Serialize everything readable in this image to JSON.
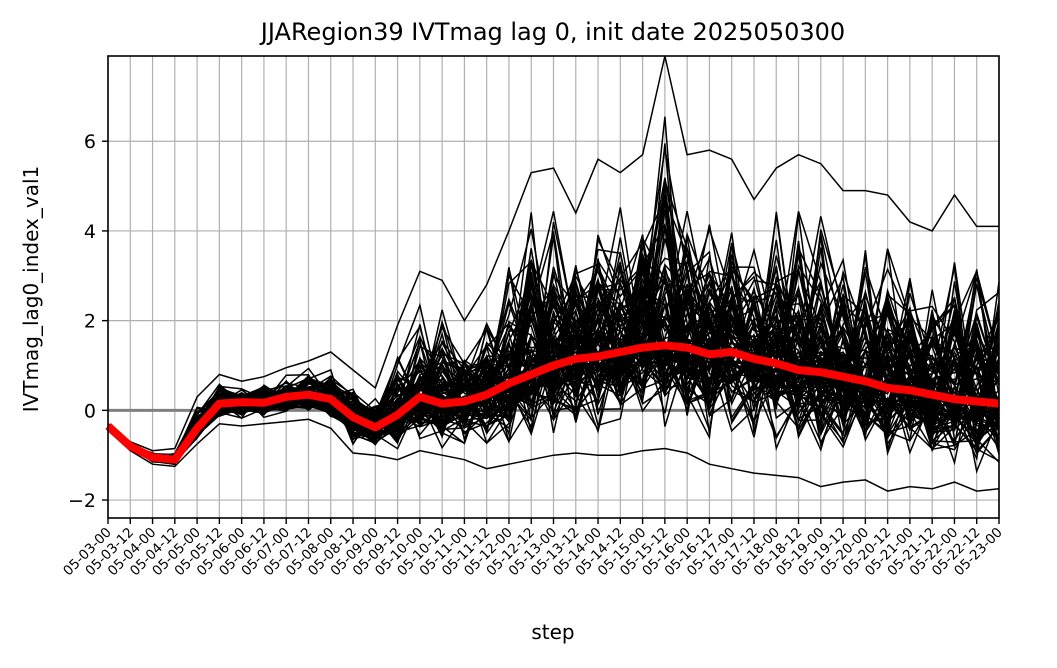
{
  "chart_data": {
    "type": "line",
    "title": "JJARegion39 IVTmag lag 0, init date 2025050300",
    "xlabel": "step",
    "ylabel": "IVTmag_lag0_index_val1",
    "ylim": [
      -2.4,
      7.9
    ],
    "yticks": [
      -2,
      0,
      2,
      4,
      6
    ],
    "ytick_labels": [
      "−2",
      "0",
      "2",
      "4",
      "6"
    ],
    "grid": true,
    "zero_line": 0,
    "categories": [
      "05-03-00",
      "05-03-12",
      "05-04-00",
      "05-04-12",
      "05-05-00",
      "05-05-12",
      "05-06-00",
      "05-06-12",
      "05-07-00",
      "05-07-12",
      "05-08-00",
      "05-08-12",
      "05-09-00",
      "05-09-12",
      "05-10-00",
      "05-10-12",
      "05-11-00",
      "05-11-12",
      "05-12-00",
      "05-12-12",
      "05-13-00",
      "05-13-12",
      "05-14-00",
      "05-14-12",
      "05-15-00",
      "05-15-12",
      "05-16-00",
      "05-16-12",
      "05-17-00",
      "05-17-12",
      "05-18-00",
      "05-18-12",
      "05-19-00",
      "05-19-12",
      "05-20-00",
      "05-20-12",
      "05-21-00",
      "05-21-12",
      "05-22-00",
      "05-22-12",
      "05-23-00"
    ],
    "colors": {
      "members": "#000000",
      "mean": "#ff0000",
      "zero_line": "#808080",
      "grid": "#b0b0b0"
    },
    "ensemble_members": 100,
    "series": [
      {
        "kind": "ensemble-mean",
        "values": [
          -0.35,
          -0.8,
          -1.05,
          -1.1,
          -0.4,
          0.15,
          0.18,
          0.17,
          0.3,
          0.35,
          0.25,
          -0.15,
          -0.38,
          -0.1,
          0.3,
          0.15,
          0.2,
          0.35,
          0.6,
          0.8,
          1.0,
          1.15,
          1.2,
          1.3,
          1.4,
          1.45,
          1.4,
          1.25,
          1.3,
          1.15,
          1.05,
          0.9,
          0.85,
          0.75,
          0.65,
          0.5,
          0.45,
          0.35,
          0.25,
          0.2,
          0.15
        ]
      },
      {
        "kind": "ensemble-member-envelope-max",
        "values": [
          -0.3,
          -0.7,
          -0.9,
          -0.85,
          0.3,
          0.8,
          0.65,
          0.75,
          0.95,
          1.1,
          1.3,
          0.9,
          0.5,
          1.9,
          3.1,
          2.9,
          2.0,
          2.8,
          4.0,
          5.3,
          5.4,
          4.4,
          5.6,
          5.3,
          5.7,
          7.9,
          5.7,
          5.8,
          5.6,
          4.7,
          5.4,
          5.7,
          5.5,
          4.9,
          4.9,
          4.8,
          4.2,
          4.0,
          4.8,
          4.1,
          4.1
        ]
      },
      {
        "kind": "ensemble-member-envelope-min",
        "values": [
          -0.45,
          -0.9,
          -1.2,
          -1.25,
          -0.75,
          -0.3,
          -0.35,
          -0.3,
          -0.25,
          -0.2,
          -0.4,
          -0.95,
          -1.0,
          -1.1,
          -0.9,
          -1.0,
          -1.1,
          -1.3,
          -1.2,
          -1.1,
          -1.0,
          -0.95,
          -1.0,
          -1.0,
          -0.9,
          -0.85,
          -0.95,
          -1.2,
          -1.3,
          -1.4,
          -1.45,
          -1.5,
          -1.7,
          -1.6,
          -1.55,
          -1.8,
          -1.7,
          -1.75,
          -1.6,
          -1.8,
          -1.75
        ]
      }
    ]
  }
}
